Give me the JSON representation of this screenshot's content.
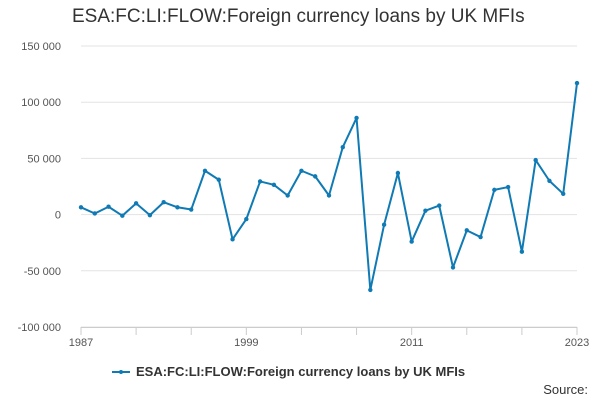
{
  "chart_data": {
    "type": "line",
    "title": "ESA:FC:LI:FLOW:Foreign currency loans by UK MFIs",
    "xlabel": "",
    "ylabel": "",
    "ylim": [
      -100000,
      150000
    ],
    "xlim": [
      1987,
      2023
    ],
    "y_ticks": [
      -100000,
      -50000,
      0,
      50000,
      100000,
      150000
    ],
    "y_tick_labels": [
      "-100 000",
      "-50 000",
      "0",
      "50 000",
      "100 000",
      "150 000"
    ],
    "x_tick_labels": [
      "1987",
      "1999",
      "2011",
      "2023"
    ],
    "grid": "horizontal",
    "legend_position": "bottom",
    "series": [
      {
        "name": "ESA:FC:LI:FLOW:Foreign currency loans by UK MFIs",
        "color": "#0f7ab4",
        "x": [
          1987,
          1988,
          1989,
          1990,
          1991,
          1992,
          1993,
          1994,
          1995,
          1996,
          1997,
          1998,
          1999,
          2000,
          2001,
          2002,
          2003,
          2004,
          2005,
          2006,
          2007,
          2008,
          2009,
          2010,
          2011,
          2012,
          2013,
          2014,
          2015,
          2016,
          2017,
          2018,
          2019,
          2020,
          2021,
          2022,
          2023
        ],
        "y": [
          6500,
          1000,
          7000,
          -1000,
          10000,
          -500,
          11000,
          6500,
          4500,
          39000,
          31000,
          -22000,
          -4000,
          29500,
          26500,
          17000,
          39000,
          34000,
          17000,
          60000,
          86000,
          -67000,
          -9000,
          37000,
          -24000,
          3500,
          8000,
          -47000,
          -14000,
          -20000,
          22000,
          24500,
          -33000,
          48500,
          30000,
          18500,
          117000
        ]
      }
    ]
  },
  "legend": {
    "label": "ESA:FC:LI:FLOW:Foreign currency loans by UK MFIs"
  },
  "footer": {
    "source_label": "Source:"
  }
}
